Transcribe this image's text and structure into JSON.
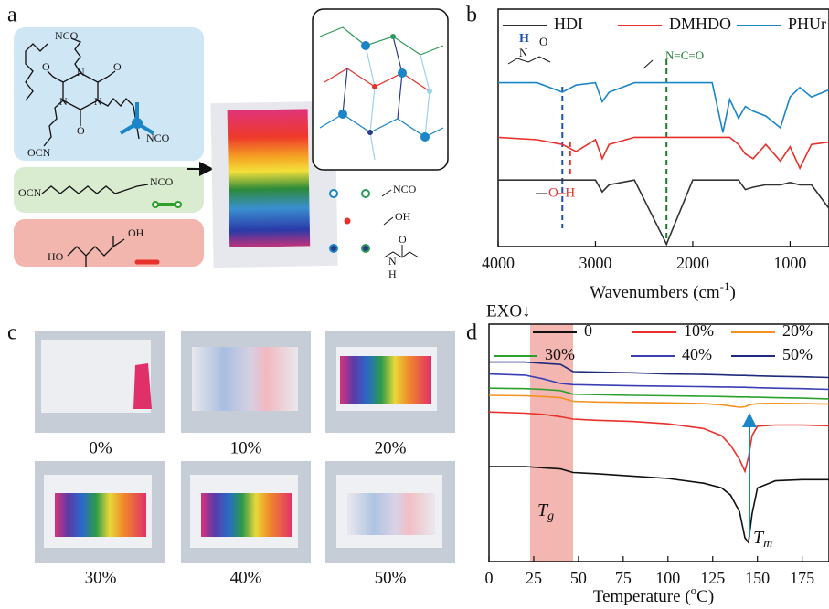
{
  "panel_a": {
    "label": "a",
    "texts": [
      "NCO",
      "NCO",
      "OCN",
      "N",
      "N",
      "N",
      "O",
      "O",
      "O",
      "OCN",
      "NCO",
      "HO",
      "OH",
      "NCO",
      "OH",
      "O",
      "N",
      "H"
    ]
  },
  "panel_c": {
    "label": "c",
    "samples": [
      "0%",
      "10%",
      "20%",
      "30%",
      "40%",
      "50%"
    ]
  },
  "chart_data": [
    {
      "type": "line",
      "panel_label": "b",
      "xlabel": [
        "Wavenumbers (cm",
        "-1",
        ")"
      ],
      "x": [
        4000,
        3600,
        3340,
        3200,
        3000,
        2930,
        2860,
        2600,
        2270,
        2000,
        1800,
        1690,
        1620,
        1530,
        1460,
        1380,
        1250,
        1100,
        1000,
        900,
        780,
        600
      ],
      "series": [
        {
          "name": "HDI",
          "color": "#333333",
          "values": [
            2.8,
            2.8,
            2.8,
            2.8,
            2.8,
            2.3,
            2.6,
            2.8,
            0.1,
            2.8,
            2.8,
            2.8,
            2.8,
            2.8,
            2.4,
            2.5,
            2.6,
            2.6,
            2.7,
            2.6,
            2.6,
            1.6
          ]
        },
        {
          "name": "DMHDO",
          "color": "#e8312a",
          "values": [
            4.6,
            4.5,
            4.3,
            4.0,
            4.5,
            3.7,
            4.3,
            4.6,
            4.6,
            4.6,
            4.6,
            4.6,
            4.6,
            4.3,
            3.9,
            3.7,
            4.3,
            3.6,
            4.2,
            3.3,
            4.3,
            4.4
          ]
        },
        {
          "name": "PHUr",
          "color": "#1a86c8",
          "values": [
            6.9,
            6.9,
            6.5,
            6.8,
            6.9,
            6.1,
            6.5,
            6.9,
            6.9,
            6.9,
            6.9,
            4.8,
            6.2,
            5.4,
            5.9,
            5.7,
            5.5,
            5.0,
            6.3,
            6.7,
            6.3,
            6.6
          ]
        }
      ],
      "xlim": [
        4000,
        600
      ],
      "ylim": [
        0,
        10
      ],
      "xticks": [
        4000,
        3000,
        2000,
        1000
      ],
      "ref_lines": [
        {
          "x": 3340,
          "color": "#1f4fb5"
        },
        {
          "x": 3260,
          "color": "#e8312a"
        },
        {
          "x": 2270,
          "color": "#1e7a32"
        }
      ],
      "annotations": [
        {
          "text": "H",
          "color": "#1f4fb5"
        },
        {
          "text": "N",
          "color": "#111111"
        },
        {
          "text": "O",
          "color": "#111111"
        },
        {
          "text": "N=C=O",
          "color": "#1e7a32"
        },
        {
          "text": "O–H",
          "color": "#e8312a"
        }
      ]
    },
    {
      "type": "line",
      "panel_label": "d",
      "xlabel": [
        "Temperature (",
        "o",
        "C)"
      ],
      "header": "EXO↓",
      "x": [
        0,
        20,
        30,
        40,
        47,
        60,
        80,
        100,
        120,
        130,
        135,
        140,
        143,
        145,
        147,
        150,
        160,
        175,
        190
      ],
      "series": [
        {
          "name": "0",
          "color": "#111111",
          "values": [
            4.0,
            4.0,
            3.95,
            3.9,
            3.75,
            3.7,
            3.6,
            3.5,
            3.3,
            3.1,
            2.8,
            2.1,
            1.0,
            0.8,
            2.0,
            3.1,
            3.4,
            3.45,
            3.45
          ]
        },
        {
          "name": "10%",
          "color": "#e8312a",
          "values": [
            6.3,
            6.25,
            6.2,
            6.1,
            6.0,
            5.95,
            5.9,
            5.8,
            5.6,
            5.3,
            4.9,
            4.3,
            3.8,
            4.4,
            5.3,
            5.7,
            5.75,
            5.75,
            5.72
          ]
        },
        {
          "name": "20%",
          "color": "#f39221",
          "values": [
            7.0,
            6.98,
            6.95,
            6.9,
            6.75,
            6.72,
            6.7,
            6.68,
            6.65,
            6.6,
            6.55,
            6.5,
            6.52,
            6.58,
            6.62,
            6.65,
            6.66,
            6.65,
            6.63
          ]
        },
        {
          "name": "30%",
          "color": "#2ca02c",
          "values": [
            7.3,
            7.28,
            7.25,
            7.2,
            7.05,
            7.03,
            7.0,
            6.98,
            6.96,
            6.95,
            6.94,
            6.93,
            6.93,
            6.93,
            6.92,
            6.92,
            6.9,
            6.88,
            6.85
          ]
        },
        {
          "name": "40%",
          "color": "#3a3fb5",
          "values": [
            7.9,
            7.85,
            7.7,
            7.5,
            7.45,
            7.43,
            7.4,
            7.38,
            7.36,
            7.35,
            7.35,
            7.34,
            7.34,
            7.33,
            7.33,
            7.32,
            7.3,
            7.28,
            7.25
          ]
        },
        {
          "name": "50%",
          "color": "#1f2a7a",
          "values": [
            8.4,
            8.4,
            8.35,
            8.3,
            8.0,
            7.98,
            7.95,
            7.9,
            7.88,
            7.86,
            7.85,
            7.84,
            7.84,
            7.83,
            7.83,
            7.82,
            7.8,
            7.78,
            7.75
          ]
        }
      ],
      "xlim": [
        0,
        190
      ],
      "ylim": [
        0,
        10
      ],
      "xticks": [
        0,
        25,
        50,
        75,
        100,
        125,
        150,
        175
      ],
      "tg_band": [
        23,
        47
      ],
      "band_color": "#f4b6b0",
      "tg_label": [
        "T",
        "g"
      ],
      "tm_label": [
        "T",
        "m"
      ]
    }
  ]
}
